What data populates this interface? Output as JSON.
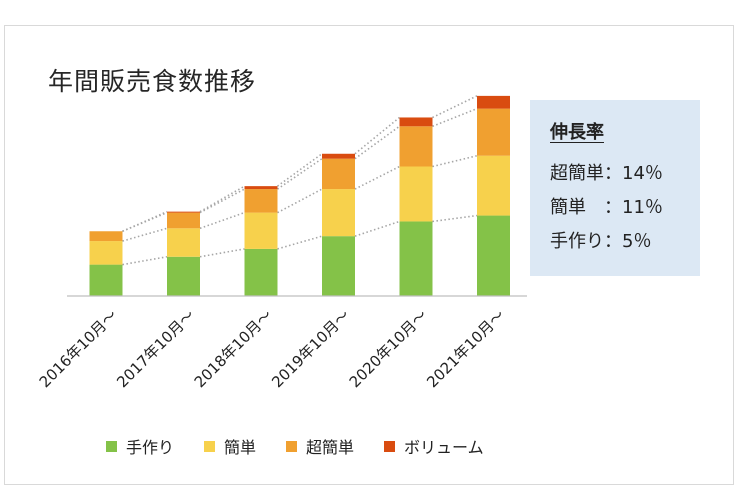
{
  "chart_data": {
    "type": "bar",
    "stacked": true,
    "title": "年間販売食数推移",
    "categories": [
      "2016年10月～",
      "2017年10月～",
      "2018年10月～",
      "2019年10月～",
      "2020年10月～",
      "2021年10月～"
    ],
    "series": [
      {
        "name": "手作り",
        "color": "#84c248",
        "values": [
          32,
          40,
          48,
          61,
          76,
          82
        ]
      },
      {
        "name": "簡単",
        "color": "#f7d14c",
        "values": [
          24,
          29,
          37,
          48,
          56,
          61
        ]
      },
      {
        "name": "超簡単",
        "color": "#f0a030",
        "values": [
          10,
          16,
          24,
          31,
          41,
          48
        ]
      },
      {
        "name": "ボリューム",
        "color": "#d94c10",
        "values": [
          0,
          1,
          3,
          5,
          9,
          13
        ]
      }
    ],
    "ylim": [
      0,
      210
    ],
    "xlabel": "",
    "ylabel": "",
    "legend_position": "bottom",
    "grid": false,
    "trend_lines": true
  },
  "growth_box": {
    "heading": "伸長率",
    "rows": [
      {
        "label": "超簡単：14％"
      },
      {
        "label": "簡単　：11％"
      },
      {
        "label": "手作り：5％"
      }
    ]
  }
}
